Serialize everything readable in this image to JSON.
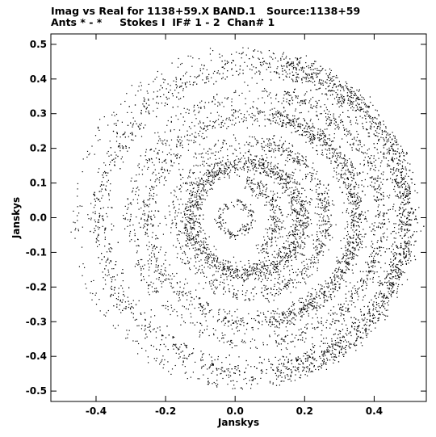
{
  "header": {
    "line1": "Imag vs Real for 1138+59.X BAND.1   Source:1138+59",
    "line2": "Ants * - *     Stokes I  IF# 1 - 2  Chan# 1"
  },
  "chart_data": {
    "type": "scatter",
    "title": "Imag vs Real for 1138+59.X BAND.1   Source:1138+59",
    "subtitle": "Ants * - *     Stokes I  IF# 1 - 2  Chan# 1",
    "xlabel": "Janskys",
    "ylabel": "Janskys",
    "xlim": [
      -0.53,
      0.55
    ],
    "ylim": [
      -0.53,
      0.53
    ],
    "xticks": [
      -0.4,
      -0.2,
      0.0,
      0.2,
      0.4
    ],
    "xtick_labels": [
      "-0.4",
      "-0.2",
      "0.0",
      "0.2",
      "0.4"
    ],
    "yticks": [
      0.5,
      0.4,
      0.3,
      0.2,
      0.1,
      0.0,
      -0.1,
      -0.2,
      -0.3,
      -0.4,
      -0.5
    ],
    "ytick_labels": [
      "0.5",
      "0.4",
      "0.3",
      "0.2",
      "0.1",
      "0.0",
      "-0.1",
      "-0.2",
      "-0.3",
      "-0.4",
      "-0.5"
    ],
    "grid": false,
    "point_color": "#000000",
    "series": [
      {
        "description_of_distribution": "concentric rings of visibility points centered near (0.0, 0.0)",
        "rings": [
          {
            "center": [
              0.0,
              0.0
            ],
            "radius": 0.045,
            "width": 0.012,
            "density": 140
          },
          {
            "center": [
              0.01,
              -0.005
            ],
            "radius": 0.11,
            "width": 0.02,
            "density": 220,
            "arc": [
              -60,
              80
            ]
          },
          {
            "center": [
              0.03,
              0.0
            ],
            "radius": 0.16,
            "width": 0.025,
            "density": 1400
          },
          {
            "center": [
              0.04,
              0.0
            ],
            "radius": 0.22,
            "width": 0.02,
            "density": 700
          },
          {
            "center": [
              0.05,
              0.0
            ],
            "radius": 0.3,
            "width": 0.025,
            "density": 1600
          },
          {
            "center": [
              0.06,
              0.0
            ],
            "radius": 0.36,
            "width": 0.02,
            "density": 900
          },
          {
            "center": [
              0.05,
              0.0
            ],
            "radius": 0.44,
            "width": 0.03,
            "density": 2600
          },
          {
            "center": [
              0.02,
              0.0
            ],
            "radius": 0.48,
            "width": 0.015,
            "density": 500
          }
        ]
      }
    ]
  }
}
